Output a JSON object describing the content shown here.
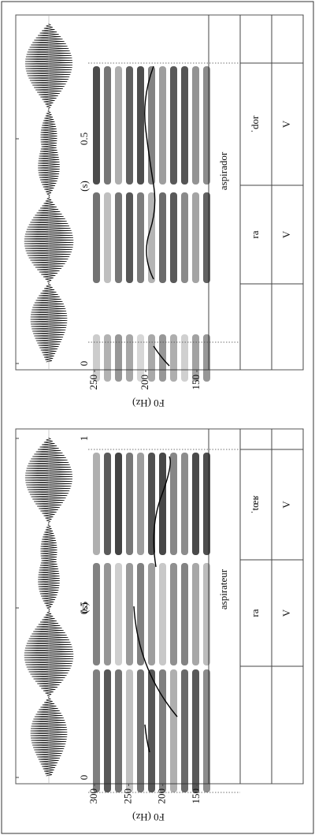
{
  "panels": [
    {
      "f0_label": "F0 (Hz)",
      "f0_ticks": [
        300,
        250,
        200,
        150
      ],
      "time_ticks": [
        0,
        0.5,
        1
      ],
      "time_unit": "(s)",
      "word": "aspirateur",
      "syllables": [
        "ra",
        "ˈtœʁ"
      ],
      "tones": [
        "V",
        "V"
      ]
    },
    {
      "f0_label": "F0 (Hz)",
      "f0_ticks": [
        250,
        200,
        150
      ],
      "time_ticks": [
        0,
        0.5
      ],
      "time_unit": "(s)",
      "word": "aspirador",
      "syllables": [
        "ra",
        "ˈdor"
      ],
      "tones": [
        "V",
        "V"
      ]
    }
  ]
}
